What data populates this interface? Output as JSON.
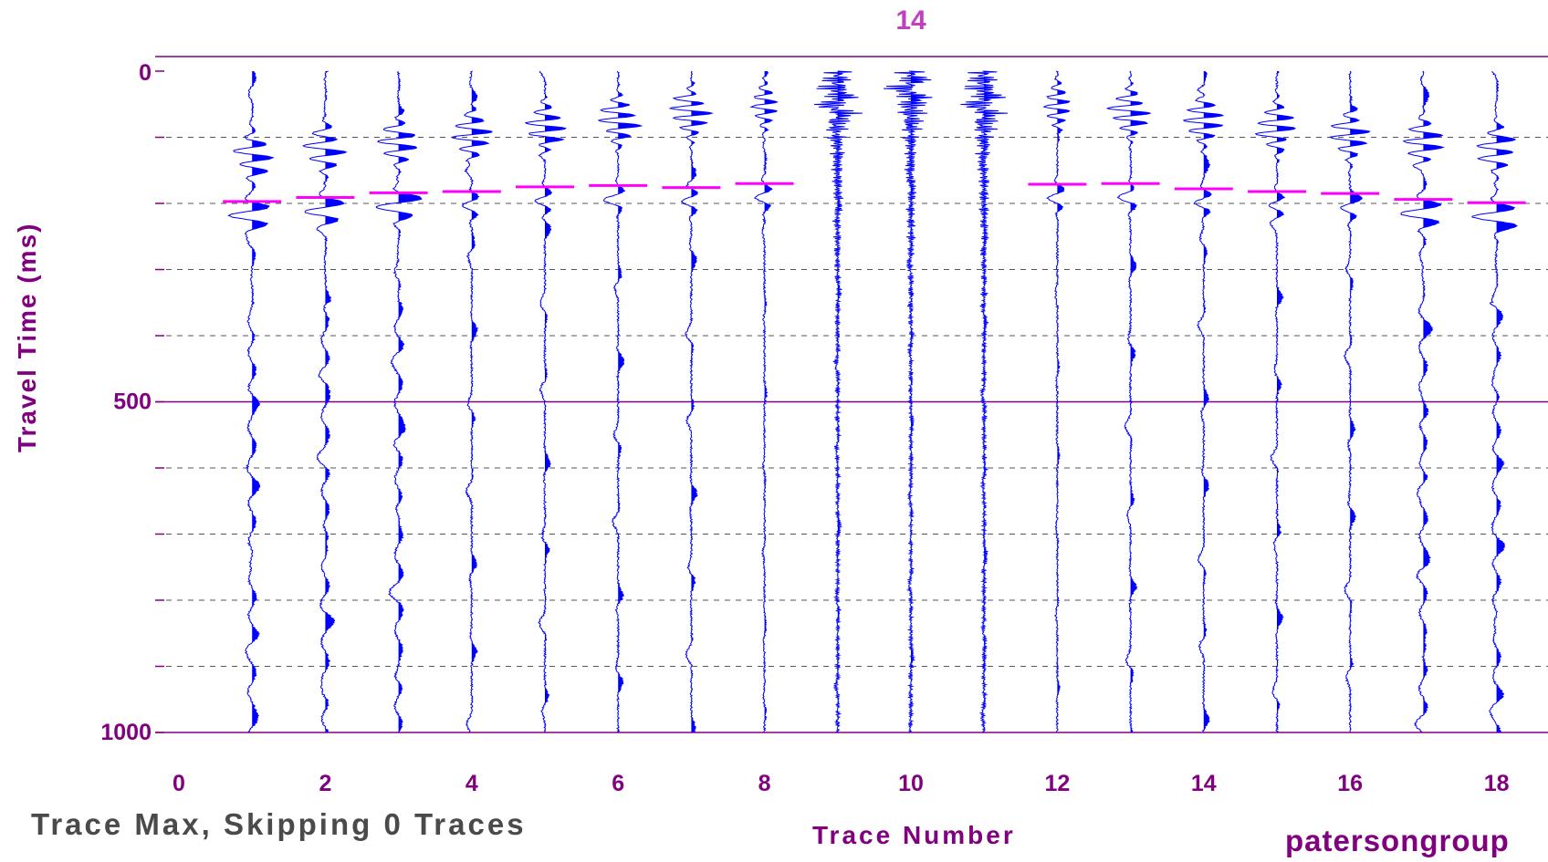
{
  "chart_data": {
    "type": "line",
    "title": "14",
    "xlabel": "Trace Number",
    "ylabel": "Travel Time (ms)",
    "xlim": [
      0,
      19.5
    ],
    "ylim": [
      0,
      1000
    ],
    "y_reversed": true,
    "x_ticks": [
      0,
      2,
      4,
      6,
      8,
      10,
      12,
      14,
      16,
      18
    ],
    "y_ticks": [
      0,
      500,
      1000
    ],
    "y_minor_gridlines": [
      100,
      200,
      300,
      400,
      600,
      700,
      800,
      900
    ],
    "traces": [
      1,
      2,
      3,
      4,
      5,
      6,
      7,
      8,
      9,
      10,
      11,
      12,
      13,
      14,
      15,
      16,
      17,
      18
    ],
    "first_break_picks_ms": [
      {
        "trace": 1,
        "time": 197
      },
      {
        "trace": 2,
        "time": 191
      },
      {
        "trace": 3,
        "time": 184
      },
      {
        "trace": 4,
        "time": 182
      },
      {
        "trace": 5,
        "time": 175
      },
      {
        "trace": 6,
        "time": 173
      },
      {
        "trace": 7,
        "time": 176
      },
      {
        "trace": 8,
        "time": 170
      },
      {
        "trace": 12,
        "time": 171
      },
      {
        "trace": 13,
        "time": 170
      },
      {
        "trace": 14,
        "time": 178
      },
      {
        "trace": 15,
        "time": 182
      },
      {
        "trace": 16,
        "time": 185
      },
      {
        "trace": 17,
        "time": 194
      },
      {
        "trace": 18,
        "time": 199
      }
    ],
    "source_trace": 10,
    "colors": {
      "trace": "#0000ff",
      "pick": "#ff00ff",
      "axis": "#800080",
      "grid": "#555555"
    }
  },
  "footer": {
    "left_text": "Trace Max, Skipping 0 Traces",
    "brand": "patersongroup"
  }
}
